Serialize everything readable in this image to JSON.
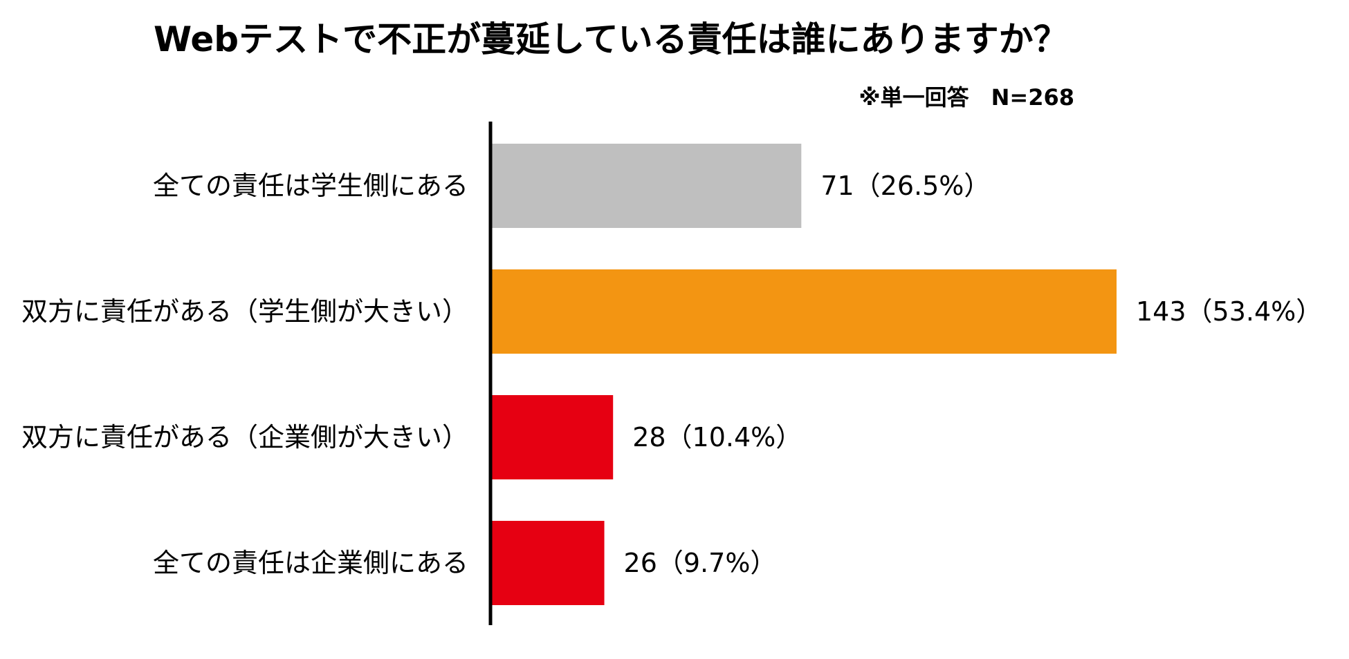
{
  "chart_data": {
    "type": "bar",
    "orientation": "horizontal",
    "title": "Webテストで不正が蔓延している責任は誰にありますか？",
    "subtitle": "※単一回答　N=268",
    "categories": [
      "全ての責任は学生側にある",
      "双方に責任がある（学生側が大きい）",
      "双方に責任がある（企業側が大きい）",
      "全ての責任は企業側にある"
    ],
    "values": [
      71,
      143,
      28,
      26
    ],
    "percentages": [
      26.5,
      53.4,
      10.4,
      9.7
    ],
    "data_labels": [
      "71（26.5%）",
      "143（53.4%）",
      "28（10.4%）",
      "26（9.7%）"
    ],
    "colors": [
      "#BFBFBF",
      "#F39512",
      "#E60012",
      "#E60012"
    ],
    "xlim": [
      0,
      143
    ],
    "grid": false,
    "legend": "none"
  }
}
